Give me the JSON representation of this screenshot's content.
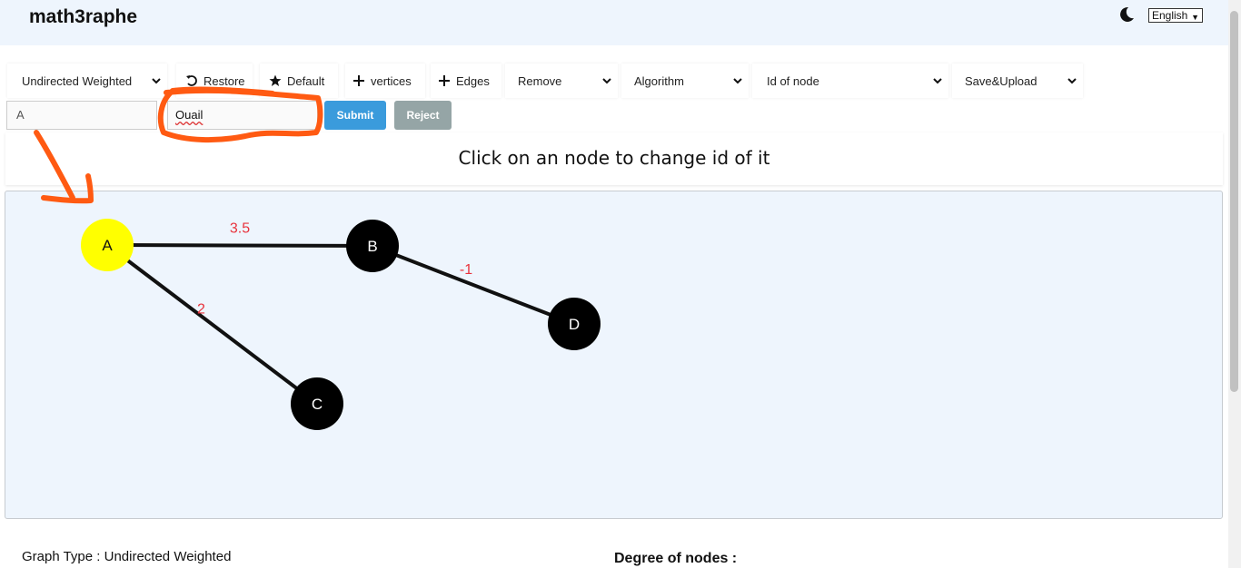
{
  "header": {
    "title": "math3raphe",
    "language": "English"
  },
  "toolbar": {
    "graph_type": "Undirected Weighted",
    "restore": "Restore",
    "default": "Default",
    "vertices": "vertices",
    "edges": "Edges",
    "remove": "Remove",
    "algorithm": "Algorithm",
    "id_of_node": "Id of node",
    "save_upload": "Save&Upload"
  },
  "form": {
    "old_id": "A",
    "new_id": "Ouail",
    "submit": "Submit",
    "reject": "Reject"
  },
  "message": "Click on an node to change id of it",
  "graph": {
    "nodes": [
      {
        "id": "A",
        "color": "#ffff00",
        "text_color": "#111111"
      },
      {
        "id": "B",
        "color": "#000000",
        "text_color": "#ffffff"
      },
      {
        "id": "C",
        "color": "#000000",
        "text_color": "#ffffff"
      },
      {
        "id": "D",
        "color": "#000000",
        "text_color": "#ffffff"
      }
    ],
    "edges": [
      {
        "from": "A",
        "to": "B",
        "weight": "3.5"
      },
      {
        "from": "A",
        "to": "C",
        "weight": "2"
      },
      {
        "from": "B",
        "to": "D",
        "weight": "-1"
      }
    ],
    "weight_color": "#e8323c"
  },
  "footer": {
    "graph_type": "Graph Type : Undirected Weighted",
    "degree": "Degree of nodes :"
  },
  "colors": {
    "annotation": "#ff5a12",
    "submit": "#3a9bdc",
    "reject": "#95a5a6"
  }
}
